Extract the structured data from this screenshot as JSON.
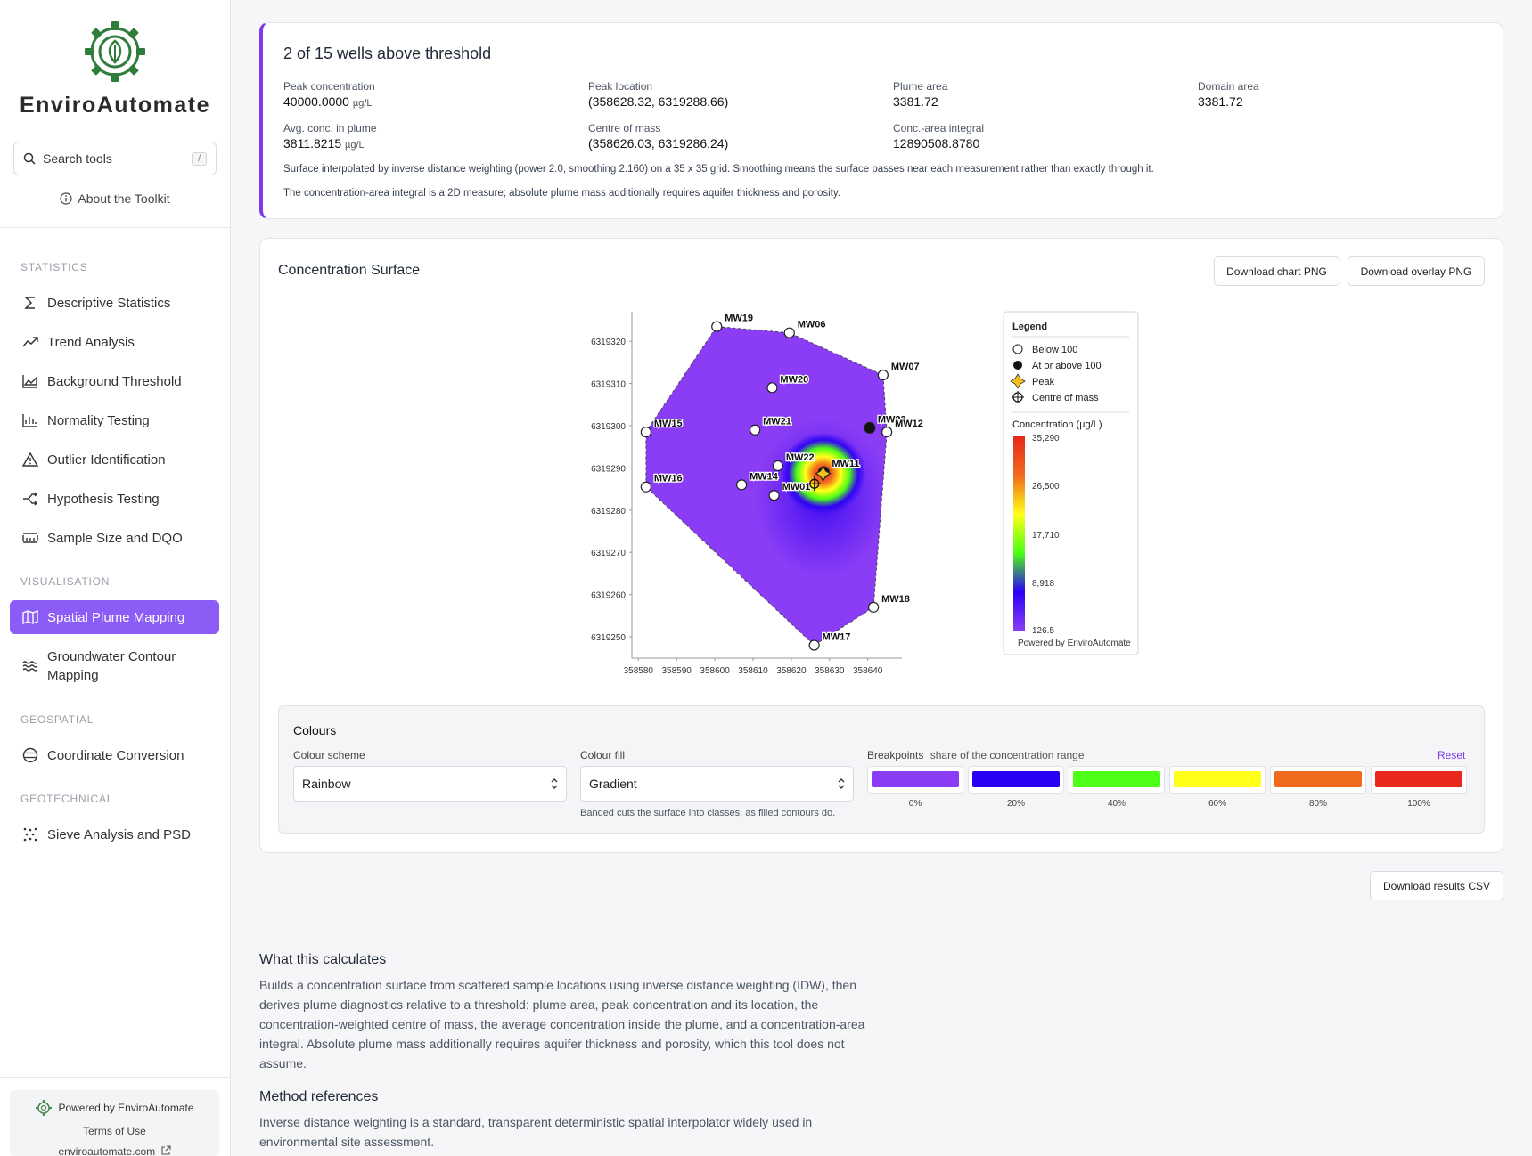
{
  "sidebar": {
    "brand": "EnviroAutomate",
    "search_placeholder": "Search tools",
    "search_shortcut": "/",
    "about": "About the Toolkit",
    "sections": {
      "statistics": "STATISTICS",
      "visualisation": "VISUALISATION",
      "geospatial": "GEOSPATIAL",
      "geotechnical": "GEOTECHNICAL"
    },
    "items": [
      {
        "label": "Descriptive Statistics",
        "icon": "sigma-icon"
      },
      {
        "label": "Trend Analysis",
        "icon": "trend-icon"
      },
      {
        "label": "Background Threshold",
        "icon": "area-chart-icon"
      },
      {
        "label": "Normality Testing",
        "icon": "histogram-icon"
      },
      {
        "label": "Outlier Identification",
        "icon": "warning-icon"
      },
      {
        "label": "Hypothesis Testing",
        "icon": "split-arrow-icon"
      },
      {
        "label": "Sample Size and DQO",
        "icon": "ruler-icon"
      },
      {
        "label": "Spatial Plume Mapping",
        "icon": "map-icon",
        "active": true
      },
      {
        "label": "Groundwater Contour Mapping",
        "icon": "waves-icon"
      },
      {
        "label": "Coordinate Conversion",
        "icon": "globe-icon"
      },
      {
        "label": "Sieve Analysis and PSD",
        "icon": "grid-dots-icon"
      }
    ],
    "footer": {
      "powered": "Powered by EnviroAutomate",
      "terms": "Terms of Use",
      "site": "enviroautomate.com"
    }
  },
  "summary": {
    "title": "2 of 15 wells above threshold",
    "metrics": [
      {
        "label": "Peak concentration",
        "value": "40000.0000",
        "unit": "µg/L"
      },
      {
        "label": "Peak location",
        "value": "(358628.32, 6319288.66)",
        "unit": ""
      },
      {
        "label": "Plume area",
        "value": "3381.72",
        "unit": ""
      },
      {
        "label": "Domain area",
        "value": "3381.72",
        "unit": ""
      },
      {
        "label": "Avg. conc. in plume",
        "value": "3811.8215",
        "unit": "µg/L"
      },
      {
        "label": "Centre of mass",
        "value": "(358626.03, 6319286.24)",
        "unit": ""
      },
      {
        "label": "Conc.-area integral",
        "value": "12890508.8780",
        "unit": ""
      }
    ],
    "note1": "Surface interpolated by inverse distance weighting (power 2.0, smoothing 2.160) on a 35 x 35 grid. Smoothing means the surface passes near each measurement rather than exactly through it.",
    "note2": "The concentration-area integral is a 2D measure; absolute plume mass additionally requires aquifer thickness and porosity."
  },
  "surface": {
    "title": "Concentration Surface",
    "download_chart": "Download chart PNG",
    "download_overlay": "Download overlay PNG"
  },
  "chart_data": {
    "type": "heatmap",
    "x_ticks": [
      358580,
      358590,
      358600,
      358610,
      358620,
      358630,
      358640
    ],
    "y_ticks": [
      6319250,
      6319260,
      6319270,
      6319280,
      6319290,
      6319300,
      6319310,
      6319320
    ],
    "xlim": [
      358579,
      358648
    ],
    "ylim": [
      6319246,
      6319327
    ],
    "wells": [
      {
        "name": "MW19",
        "x": 358600.5,
        "y": 6319323.5,
        "above": false
      },
      {
        "name": "MW06",
        "x": 358619.5,
        "y": 6319322,
        "above": false
      },
      {
        "name": "MW07",
        "x": 358644,
        "y": 6319312,
        "above": false
      },
      {
        "name": "MW20",
        "x": 358615,
        "y": 6319309,
        "above": false
      },
      {
        "name": "MW15",
        "x": 358582,
        "y": 6319298.5,
        "above": false
      },
      {
        "name": "MW21",
        "x": 358610.5,
        "y": 6319299,
        "above": false
      },
      {
        "name": "MW23",
        "x": 358640.5,
        "y": 6319299.5,
        "above": true
      },
      {
        "name": "MW12",
        "x": 358645,
        "y": 6319298.5,
        "above": false
      },
      {
        "name": "MW22",
        "x": 358616.5,
        "y": 6319290.5,
        "above": false
      },
      {
        "name": "MW11",
        "x": 358628.5,
        "y": 6319289,
        "above": true
      },
      {
        "name": "MW16",
        "x": 358582,
        "y": 6319285.5,
        "above": false
      },
      {
        "name": "MW14",
        "x": 358607,
        "y": 6319286,
        "above": false
      },
      {
        "name": "MW01",
        "x": 358615.5,
        "y": 6319283.5,
        "above": false
      },
      {
        "name": "MW18",
        "x": 358641.5,
        "y": 6319257,
        "above": false
      },
      {
        "name": "MW17",
        "x": 358626,
        "y": 6319248,
        "above": false
      }
    ],
    "peak": {
      "x": 358628.32,
      "y": 6319288.66
    },
    "centre_of_mass": {
      "x": 358626.03,
      "y": 6319286.24
    },
    "hull_order": [
      "MW19",
      "MW06",
      "MW07",
      "MW12",
      "MW18",
      "MW17",
      "MW16",
      "MW15"
    ],
    "legend": {
      "title": "Legend",
      "items": [
        "Below 100",
        "At or above 100",
        "Peak",
        "Centre of mass"
      ],
      "colorbar_title": "Concentration (µg/L)",
      "colorbar_ticks": [
        "35,290",
        "26,500",
        "17,710",
        "8,918",
        "126.5"
      ],
      "credit": "Powered by EnviroAutomate"
    }
  },
  "colours": {
    "title": "Colours",
    "scheme_label": "Colour scheme",
    "scheme_value": "Rainbow",
    "fill_label": "Colour fill",
    "fill_value": "Gradient",
    "fill_helper": "Banded cuts the surface into classes, as filled contours do.",
    "breakpoints_label": "Breakpoints",
    "breakpoints_sub": "share of the concentration range",
    "reset": "Reset",
    "breakpoints": [
      {
        "label": "0%",
        "color": "#8b3df5"
      },
      {
        "label": "20%",
        "color": "#2a00f5"
      },
      {
        "label": "40%",
        "color": "#4dff14"
      },
      {
        "label": "60%",
        "color": "#ffff1a"
      },
      {
        "label": "80%",
        "color": "#f06a1e"
      },
      {
        "label": "100%",
        "color": "#e8281c"
      }
    ]
  },
  "download_csv": "Download results CSV",
  "calc": {
    "title": "What this calculates",
    "body": "Builds a concentration surface from scattered sample locations using inverse distance weighting (IDW), then derives plume diagnostics relative to a threshold: plume area, peak concentration and its location, the concentration-weighted centre of mass, the average concentration inside the plume, and a concentration-area integral. Absolute plume mass additionally requires aquifer thickness and porosity, which this tool does not assume.",
    "refs_title": "Method references",
    "refs_body": "Inverse distance weighting is a standard, transparent deterministic spatial interpolator widely used in environmental site assessment."
  }
}
